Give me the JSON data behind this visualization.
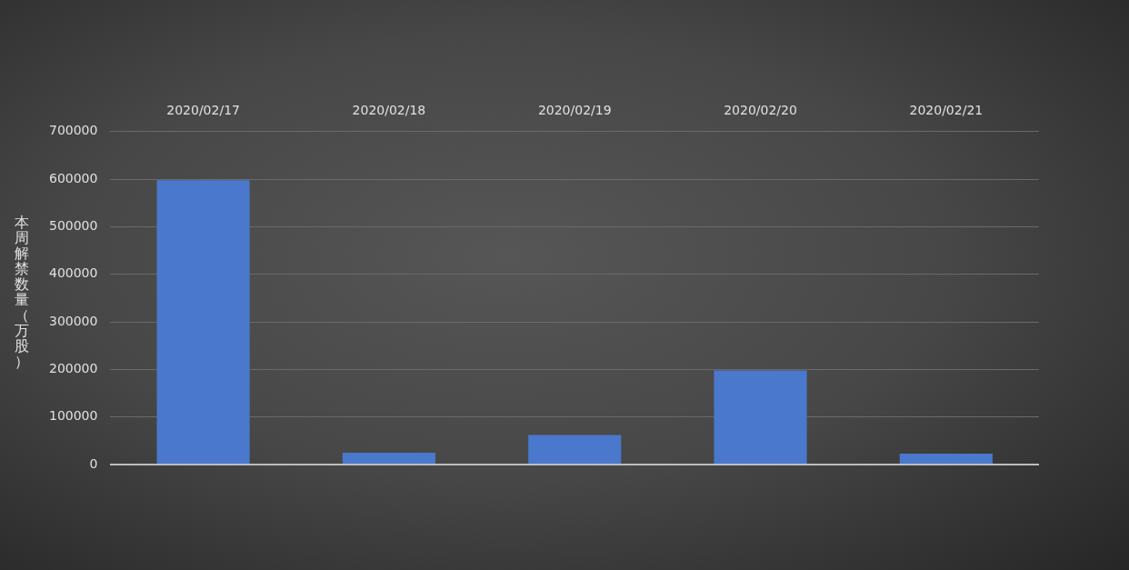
{
  "chart_data": {
    "type": "bar",
    "ylabel": "本周解禁数量（万股）",
    "categories": [
      "2020/02/17",
      "2020/02/18",
      "2020/02/19",
      "2020/02/20",
      "2020/02/21"
    ],
    "values": [
      598000,
      25000,
      62000,
      198000,
      23000
    ],
    "color": "#4a78cc",
    "ylim": [
      0,
      700000
    ],
    "yticks": [
      0,
      100000,
      200000,
      300000,
      400000,
      500000,
      600000,
      700000
    ],
    "grid": "y"
  }
}
